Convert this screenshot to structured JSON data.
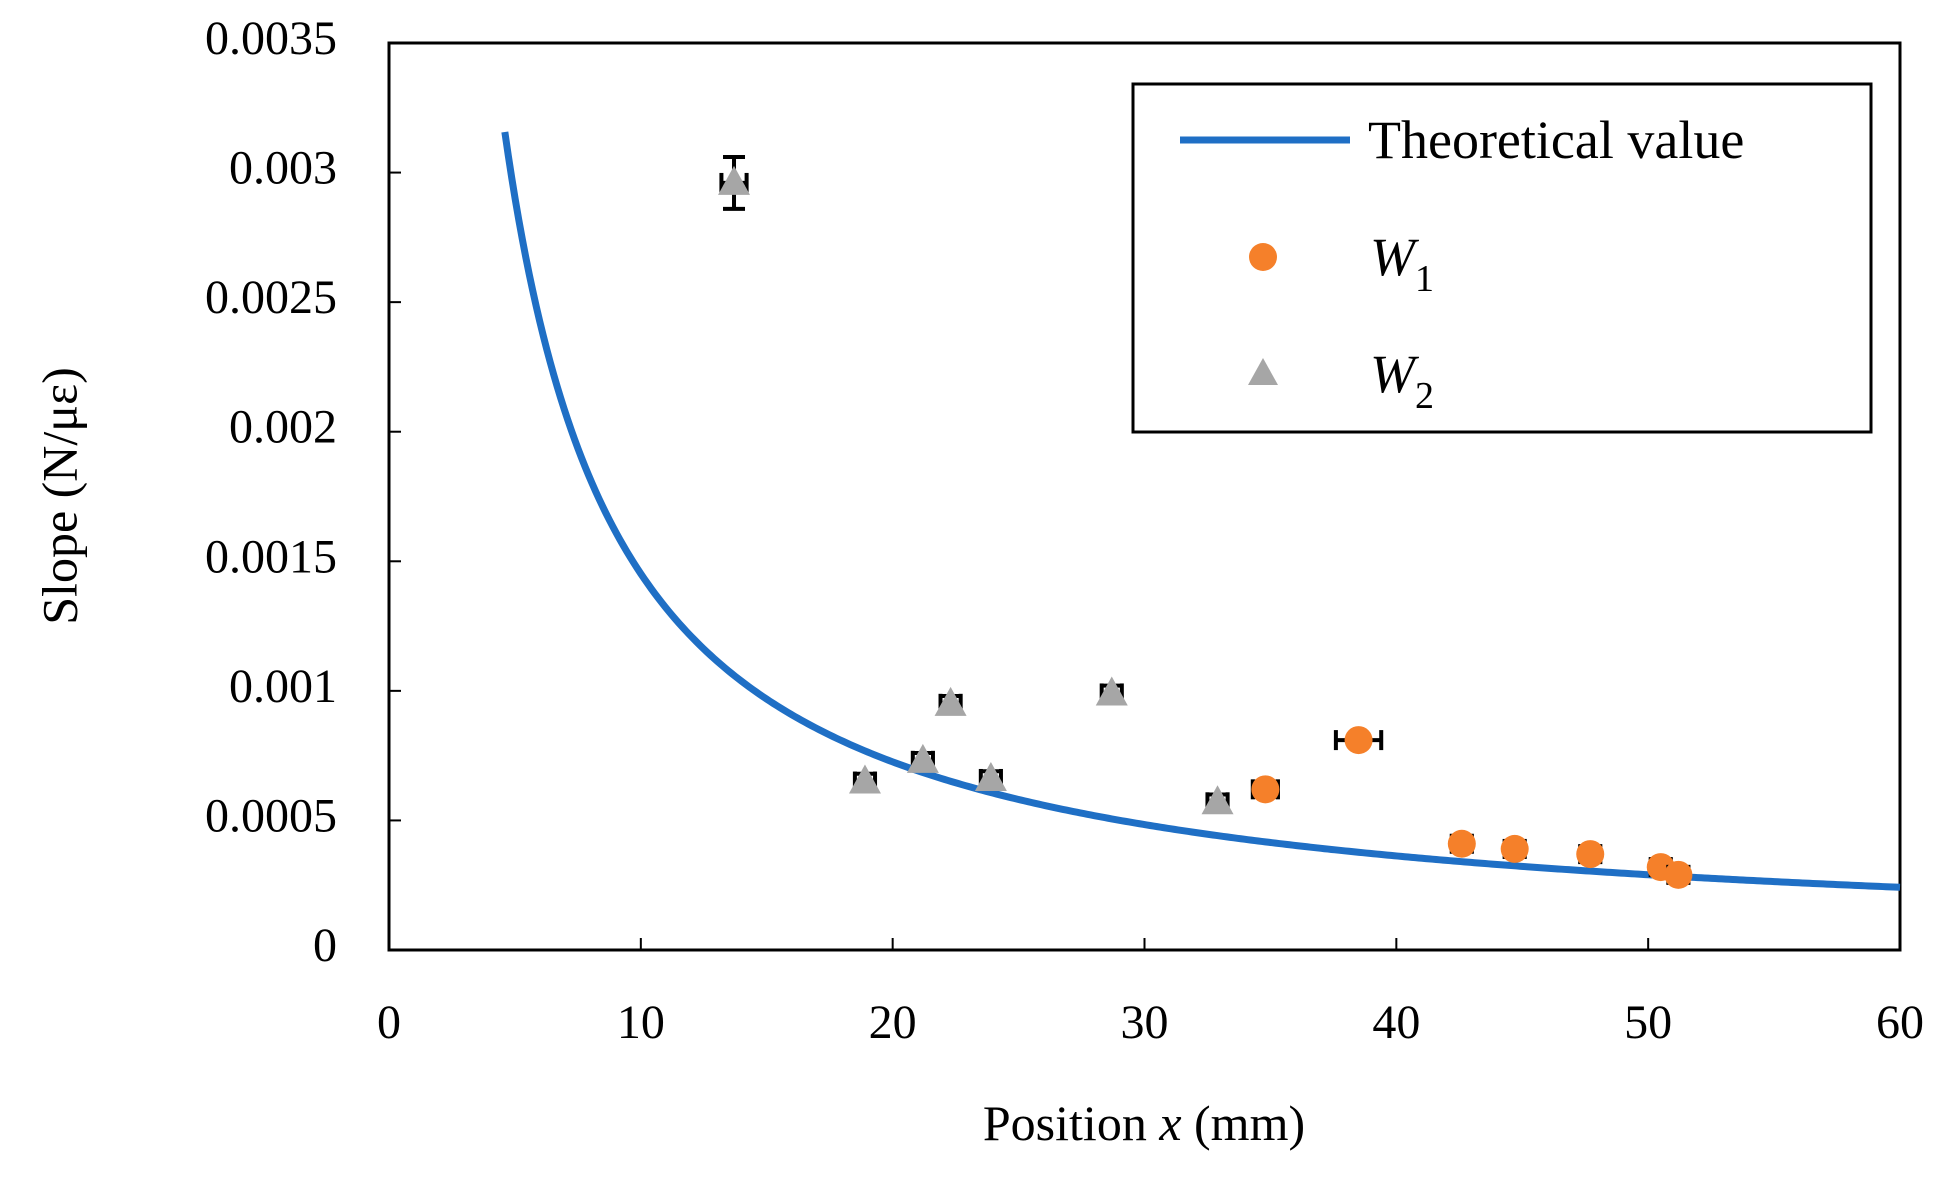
{
  "chart_data": {
    "type": "scatter",
    "title": "",
    "xlabel": "Position",
    "xlabel_var": "x",
    "xlabel_unit": "(mm)",
    "ylabel": "Slope (N/με)",
    "xlim": [
      0,
      60
    ],
    "ylim": [
      0,
      0.0035
    ],
    "x_ticks": [
      0,
      10,
      20,
      30,
      40,
      50,
      60
    ],
    "x_tick_labels": [
      "0",
      "10",
      "20",
      "30",
      "40",
      "50",
      "60"
    ],
    "y_ticks": [
      0,
      0.0005,
      0.001,
      0.0015,
      0.002,
      0.0025,
      0.003,
      0.0035
    ],
    "y_tick_labels": [
      "0",
      "0.0005",
      "0.001",
      "0.0015",
      "0.002",
      "0.0025",
      "0.003",
      "0.0035"
    ],
    "grid": false,
    "legend_position": "top-right",
    "series": [
      {
        "name": "Theoretical value",
        "kind": "line",
        "color": "#1f6fc5",
        "curve_constant": 0.01452,
        "x_start": 4.6,
        "x_end": 60
      },
      {
        "name": "W1",
        "legend_base": "W",
        "legend_sub": "1",
        "kind": "points",
        "marker": "circle",
        "color": "#f5802a",
        "points": [
          {
            "x": 34.8,
            "y": 0.00062,
            "xerr": 0.5,
            "yerr": 3e-05
          },
          {
            "x": 38.5,
            "y": 0.00081,
            "xerr": 0.9,
            "yerr": 2e-05
          },
          {
            "x": 42.6,
            "y": 0.00041,
            "xerr": 0.4,
            "yerr": 3e-05
          },
          {
            "x": 44.7,
            "y": 0.00039,
            "xerr": 0.4,
            "yerr": 3e-05
          },
          {
            "x": 47.7,
            "y": 0.00037,
            "xerr": 0.4,
            "yerr": 3e-05
          },
          {
            "x": 50.5,
            "y": 0.00032,
            "xerr": 0.4,
            "yerr": 3e-05
          },
          {
            "x": 51.2,
            "y": 0.00029,
            "xerr": 0.4,
            "yerr": 3e-05
          }
        ]
      },
      {
        "name": "W2",
        "legend_base": "W",
        "legend_sub": "2",
        "kind": "points",
        "marker": "triangle",
        "color": "#a6a6a6",
        "points": [
          {
            "x": 13.7,
            "y": 0.00296,
            "xerr": 0.5,
            "yerr": 0.0001
          },
          {
            "x": 18.9,
            "y": 0.00065,
            "xerr": 0.4,
            "yerr": 3e-05
          },
          {
            "x": 21.2,
            "y": 0.00073,
            "xerr": 0.4,
            "yerr": 3e-05
          },
          {
            "x": 22.3,
            "y": 0.00095,
            "xerr": 0.4,
            "yerr": 3e-05
          },
          {
            "x": 23.9,
            "y": 0.00066,
            "xerr": 0.4,
            "yerr": 3e-05
          },
          {
            "x": 28.7,
            "y": 0.00099,
            "xerr": 0.4,
            "yerr": 3e-05
          },
          {
            "x": 32.9,
            "y": 0.00057,
            "xerr": 0.4,
            "yerr": 3e-05
          }
        ]
      }
    ]
  }
}
